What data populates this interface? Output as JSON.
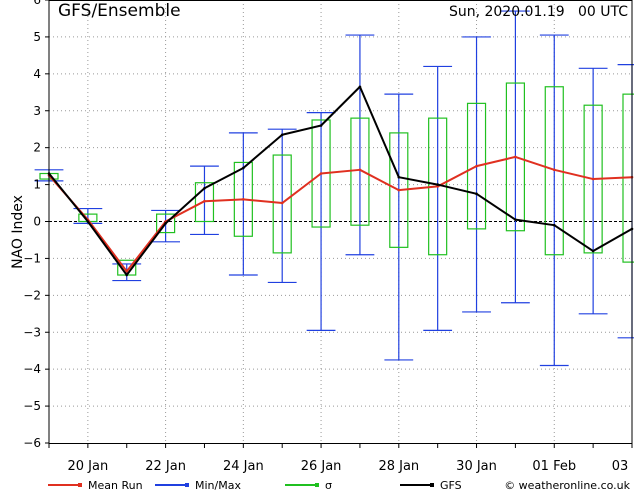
{
  "chart_data": {
    "type": "line",
    "title": "GFS/Ensemble",
    "subtitle": "Sun, 2020.01.19   00 UTC",
    "ylabel": "NAO Index",
    "xlabel": "",
    "ylim": [
      -6,
      6
    ],
    "yticks": [
      -6,
      -5,
      -4,
      -3,
      -2,
      -1,
      0,
      1,
      2,
      3,
      4,
      5,
      6
    ],
    "ytick_labels": [
      "−6",
      "−5",
      "−4",
      "−3",
      "−2",
      "−1",
      "0",
      "1",
      "2",
      "3",
      "4",
      "5",
      "6"
    ],
    "x_tick_labels": [
      {
        "day": 1,
        "label": "20 Jan"
      },
      {
        "day": 3,
        "label": "22 Jan"
      },
      {
        "day": 5,
        "label": "24 Jan"
      },
      {
        "day": 7,
        "label": "26 Jan"
      },
      {
        "day": 9,
        "label": "28 Jan"
      },
      {
        "day": 11,
        "label": "30 Jan"
      },
      {
        "day": 13,
        "label": "01 Feb"
      },
      {
        "day": 15,
        "label": "03"
      }
    ],
    "xlim": [
      0,
      15
    ],
    "grid": true,
    "legend": [
      {
        "name": "Mean Run",
        "color": "#e03020"
      },
      {
        "name": "Min/Max",
        "color": "#2040e0"
      },
      {
        "name": "σ",
        "color": "#20c020"
      },
      {
        "name": "GFS",
        "color": "#000000"
      }
    ],
    "credit": "© weatheronline.co.uk",
    "x": [
      0,
      1,
      2,
      3,
      4,
      5,
      6,
      7,
      8,
      9,
      10,
      11,
      12,
      13,
      14,
      15
    ],
    "series": [
      {
        "name": "Mean Run",
        "color": "#e03020",
        "values": [
          1.25,
          0.05,
          -1.35,
          0.0,
          0.55,
          0.6,
          0.5,
          1.3,
          1.4,
          0.85,
          0.95,
          1.5,
          1.75,
          1.4,
          1.15,
          1.2
        ]
      },
      {
        "name": "GFS",
        "color": "#000000",
        "values": [
          1.3,
          0.0,
          -1.45,
          -0.05,
          0.9,
          1.45,
          2.35,
          2.6,
          3.65,
          1.2,
          1.0,
          0.75,
          0.05,
          -0.1,
          -0.8,
          -0.2
        ]
      },
      {
        "name": "Min/Max",
        "color": "#2040e0",
        "min": [
          1.1,
          -0.05,
          -1.6,
          -0.55,
          -0.35,
          -1.45,
          -1.65,
          -2.95,
          -0.9,
          -3.75,
          -2.95,
          -2.45,
          -2.2,
          -3.9,
          -2.5,
          -3.15
        ],
        "max": [
          1.4,
          0.35,
          -1.15,
          0.3,
          1.5,
          2.4,
          2.5,
          2.95,
          5.05,
          3.45,
          4.2,
          5.0,
          5.7,
          5.05,
          4.15,
          4.25
        ]
      },
      {
        "name": "σ",
        "color": "#20c020",
        "low": [
          1.15,
          0.0,
          -1.45,
          -0.3,
          0.0,
          -0.4,
          -0.85,
          -0.15,
          -0.1,
          -0.7,
          -0.9,
          -0.2,
          -0.25,
          -0.9,
          -0.85,
          -1.1
        ],
        "high": [
          1.3,
          0.2,
          -1.05,
          0.2,
          1.05,
          1.6,
          1.8,
          2.75,
          2.8,
          2.4,
          2.8,
          3.2,
          3.75,
          3.65,
          3.15,
          3.45
        ]
      }
    ]
  }
}
